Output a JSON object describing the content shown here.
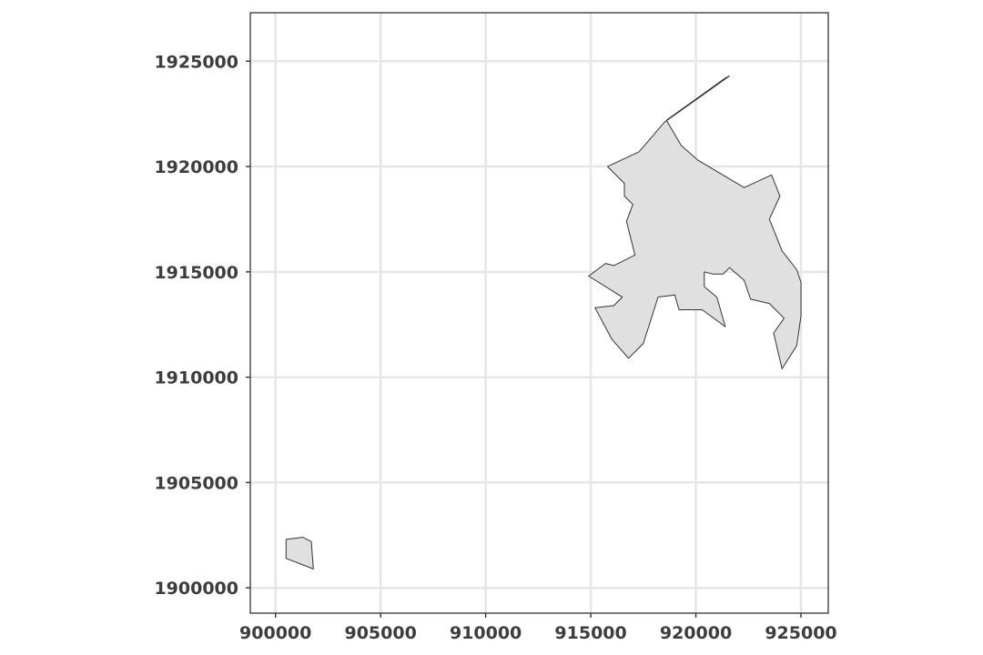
{
  "chart_data": {
    "type": "map",
    "title": "",
    "xlabel": "",
    "ylabel": "",
    "xlim": [
      898800,
      926300
    ],
    "ylim": [
      1898800,
      1927300
    ],
    "x_ticks": [
      900000,
      905000,
      910000,
      915000,
      920000,
      925000
    ],
    "x_tick_labels": [
      "900000",
      "905000",
      "910000",
      "915000",
      "920000",
      "925000"
    ],
    "y_ticks": [
      1900000,
      1905000,
      1910000,
      1915000,
      1920000,
      1925000
    ],
    "y_tick_labels": [
      "1900000",
      "1905000",
      "1910000",
      "1915000",
      "1920000",
      "1925000"
    ],
    "grid": true,
    "panel_background": "#ffffff",
    "grid_color": "#e6e6e6",
    "fill_color": "#e0e0e0",
    "stroke_color": "#333333",
    "polygons": [
      {
        "id": "main-region",
        "coords": [
          [
            918500,
            1922100
          ],
          [
            921600,
            1924300
          ],
          [
            921400,
            1924200
          ],
          [
            918600,
            1922200
          ],
          [
            919300,
            1921000
          ],
          [
            920100,
            1920300
          ],
          [
            922300,
            1919000
          ],
          [
            923600,
            1919600
          ],
          [
            924000,
            1918600
          ],
          [
            923500,
            1917500
          ],
          [
            924100,
            1916000
          ],
          [
            924800,
            1915100
          ],
          [
            925000,
            1914500
          ],
          [
            925000,
            1912900
          ],
          [
            924800,
            1911500
          ],
          [
            924100,
            1910400
          ],
          [
            923700,
            1912100
          ],
          [
            924200,
            1912800
          ],
          [
            923500,
            1913500
          ],
          [
            922600,
            1913700
          ],
          [
            922300,
            1914600
          ],
          [
            921600,
            1915200
          ],
          [
            921300,
            1914900
          ],
          [
            920800,
            1914900
          ],
          [
            920400,
            1915000
          ],
          [
            920400,
            1914300
          ],
          [
            921000,
            1913800
          ],
          [
            921400,
            1912400
          ],
          [
            920300,
            1913200
          ],
          [
            919200,
            1913200
          ],
          [
            919000,
            1913900
          ],
          [
            918200,
            1913800
          ],
          [
            917500,
            1911600
          ],
          [
            916800,
            1910900
          ],
          [
            916000,
            1911800
          ],
          [
            915200,
            1913300
          ],
          [
            916100,
            1913400
          ],
          [
            916500,
            1913800
          ],
          [
            914900,
            1914800
          ],
          [
            915700,
            1915400
          ],
          [
            916100,
            1915300
          ],
          [
            917100,
            1915800
          ],
          [
            916700,
            1917400
          ],
          [
            917000,
            1918200
          ],
          [
            916600,
            1918600
          ],
          [
            916600,
            1919200
          ],
          [
            915800,
            1920000
          ],
          [
            917300,
            1920700
          ]
        ]
      },
      {
        "id": "small-region",
        "coords": [
          [
            900500,
            1902300
          ],
          [
            901300,
            1902400
          ],
          [
            901700,
            1902200
          ],
          [
            901800,
            1900900
          ],
          [
            900500,
            1901400
          ]
        ]
      }
    ]
  }
}
